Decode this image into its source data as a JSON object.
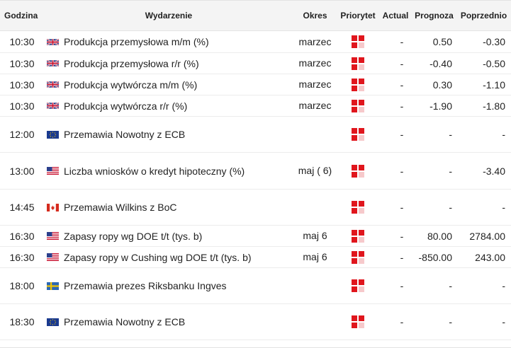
{
  "header": {
    "time": "Godzina",
    "event": "Wydarzenie",
    "period": "Okres",
    "priority": "Priorytet",
    "actual": "Actual",
    "forecast": "Prognoza",
    "previous": "Poprzednio"
  },
  "rows": [
    {
      "time": "10:30",
      "country": "uk-flag-icon",
      "event": "Produkcja przemysłowa m/m (%)",
      "period": "marzec",
      "actual": "-",
      "forecast": "0.50",
      "previous": "-0.30"
    },
    {
      "time": "10:30",
      "country": "uk-flag-icon",
      "event": "Produkcja przemysłowa r/r (%)",
      "period": "marzec",
      "actual": "-",
      "forecast": "-0.40",
      "previous": "-0.50"
    },
    {
      "time": "10:30",
      "country": "uk-flag-icon",
      "event": "Produkcja wytwórcza m/m (%)",
      "period": "marzec",
      "actual": "-",
      "forecast": "0.30",
      "previous": "-1.10"
    },
    {
      "time": "10:30",
      "country": "uk-flag-icon",
      "event": "Produkcja wytwórcza r/r (%)",
      "period": "marzec",
      "actual": "-",
      "forecast": "-1.90",
      "previous": "-1.80"
    },
    {
      "time": "12:00",
      "country": "eu-flag-icon",
      "event": "Przemawia Nowotny z ECB",
      "period": "",
      "actual": "-",
      "forecast": "-",
      "previous": "-"
    },
    {
      "time": "13:00",
      "country": "us-flag-icon",
      "event": "Liczba wniosków o kredyt hipoteczny (%)",
      "period": "maj ( 6)",
      "actual": "-",
      "forecast": "-",
      "previous": "-3.40"
    },
    {
      "time": "14:45",
      "country": "ca-flag-icon",
      "event": "Przemawia Wilkins z BoC",
      "period": "",
      "actual": "-",
      "forecast": "-",
      "previous": "-"
    },
    {
      "time": "16:30",
      "country": "us-flag-icon",
      "event": "Zapasy ropy wg DOE t/t (tys. b)",
      "period": "maj 6",
      "actual": "-",
      "forecast": "80.00",
      "previous": "2784.00"
    },
    {
      "time": "16:30",
      "country": "us-flag-icon",
      "event": "Zapasy ropy w Cushing wg DOE t/t (tys. b)",
      "period": "maj 6",
      "actual": "-",
      "forecast": "-850.00",
      "previous": "243.00"
    },
    {
      "time": "18:00",
      "country": "se-flag-icon",
      "event": "Przemawia prezes Riksbanku Ingves",
      "period": "",
      "actual": "-",
      "forecast": "-",
      "previous": "-"
    },
    {
      "time": "18:30",
      "country": "eu-flag-icon",
      "event": "Przemawia Nowotny z ECB",
      "period": "",
      "actual": "-",
      "forecast": "-",
      "previous": "-"
    }
  ],
  "colors": {
    "priority_fill": "#e0161d",
    "priority_light": "#f6c9cb",
    "grid": "#ececec",
    "header_bg": "#f4f4f4"
  }
}
